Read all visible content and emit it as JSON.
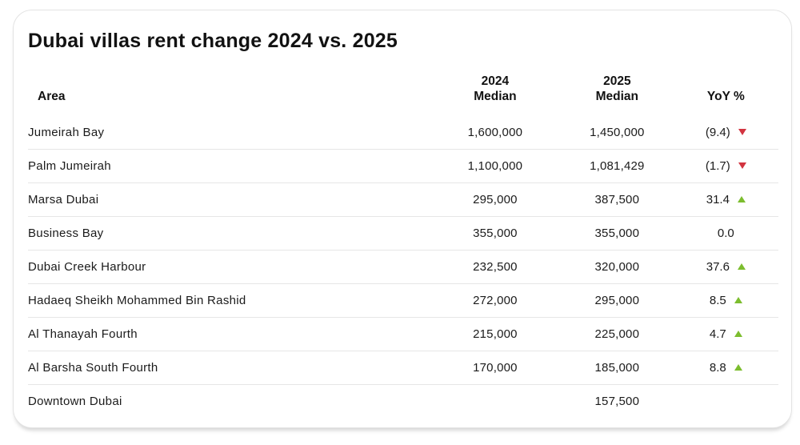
{
  "colors": {
    "up_green": "#7cbd2e",
    "down_red": "#d23440",
    "divider": "#e6e6e6",
    "card_border": "#e3e3e3"
  },
  "card": {
    "title": "Dubai villas rent change 2024 vs. 2025"
  },
  "table": {
    "headers": {
      "area": "Area",
      "y2024_line1": "2024",
      "y2024_line2": "Median",
      "y2025_line1": "2025",
      "y2025_line2": "Median",
      "yoy": "YoY %"
    },
    "rows": [
      {
        "area": "Jumeirah Bay",
        "median_2024": "1,600,000",
        "median_2025": "1,450,000",
        "yoy": "(9.4)",
        "trend": "down"
      },
      {
        "area": "Palm Jumeirah",
        "median_2024": "1,100,000",
        "median_2025": "1,081,429",
        "yoy": "(1.7)",
        "trend": "down"
      },
      {
        "area": "Marsa Dubai",
        "median_2024": "295,000",
        "median_2025": "387,500",
        "yoy": "31.4",
        "trend": "up"
      },
      {
        "area": "Business Bay",
        "median_2024": "355,000",
        "median_2025": "355,000",
        "yoy": "0.0",
        "trend": "none"
      },
      {
        "area": "Dubai Creek Harbour",
        "median_2024": "232,500",
        "median_2025": "320,000",
        "yoy": "37.6",
        "trend": "up"
      },
      {
        "area": "Hadaeq Sheikh Mohammed Bin Rashid",
        "median_2024": "272,000",
        "median_2025": "295,000",
        "yoy": "8.5",
        "trend": "up"
      },
      {
        "area": "Al Thanayah Fourth",
        "median_2024": "215,000",
        "median_2025": "225,000",
        "yoy": "4.7",
        "trend": "up"
      },
      {
        "area": "Al Barsha South Fourth",
        "median_2024": "170,000",
        "median_2025": "185,000",
        "yoy": "8.8",
        "trend": "up"
      },
      {
        "area": "Downtown Dubai",
        "median_2024": "",
        "median_2025": "157,500",
        "yoy": "",
        "trend": "none"
      }
    ]
  },
  "chart_data": {
    "type": "table",
    "title": "Dubai villas rent change 2024 vs. 2025",
    "columns": [
      "Area",
      "2024 Median",
      "2025 Median",
      "YoY %"
    ],
    "categories": [
      "Jumeirah Bay",
      "Palm Jumeirah",
      "Marsa Dubai",
      "Business Bay",
      "Dubai Creek Harbour",
      "Hadaeq Sheikh Mohammed Bin Rashid",
      "Al Thanayah Fourth",
      "Al Barsha South Fourth",
      "Downtown Dubai"
    ],
    "series": [
      {
        "name": "2024 Median",
        "values": [
          1600000,
          1100000,
          295000,
          355000,
          232500,
          272000,
          215000,
          170000,
          null
        ]
      },
      {
        "name": "2025 Median",
        "values": [
          1450000,
          1081429,
          387500,
          355000,
          320000,
          295000,
          225000,
          185000,
          157500
        ]
      },
      {
        "name": "YoY %",
        "values": [
          -9.4,
          -1.7,
          31.4,
          0.0,
          37.6,
          8.5,
          4.7,
          8.8,
          null
        ]
      }
    ]
  }
}
